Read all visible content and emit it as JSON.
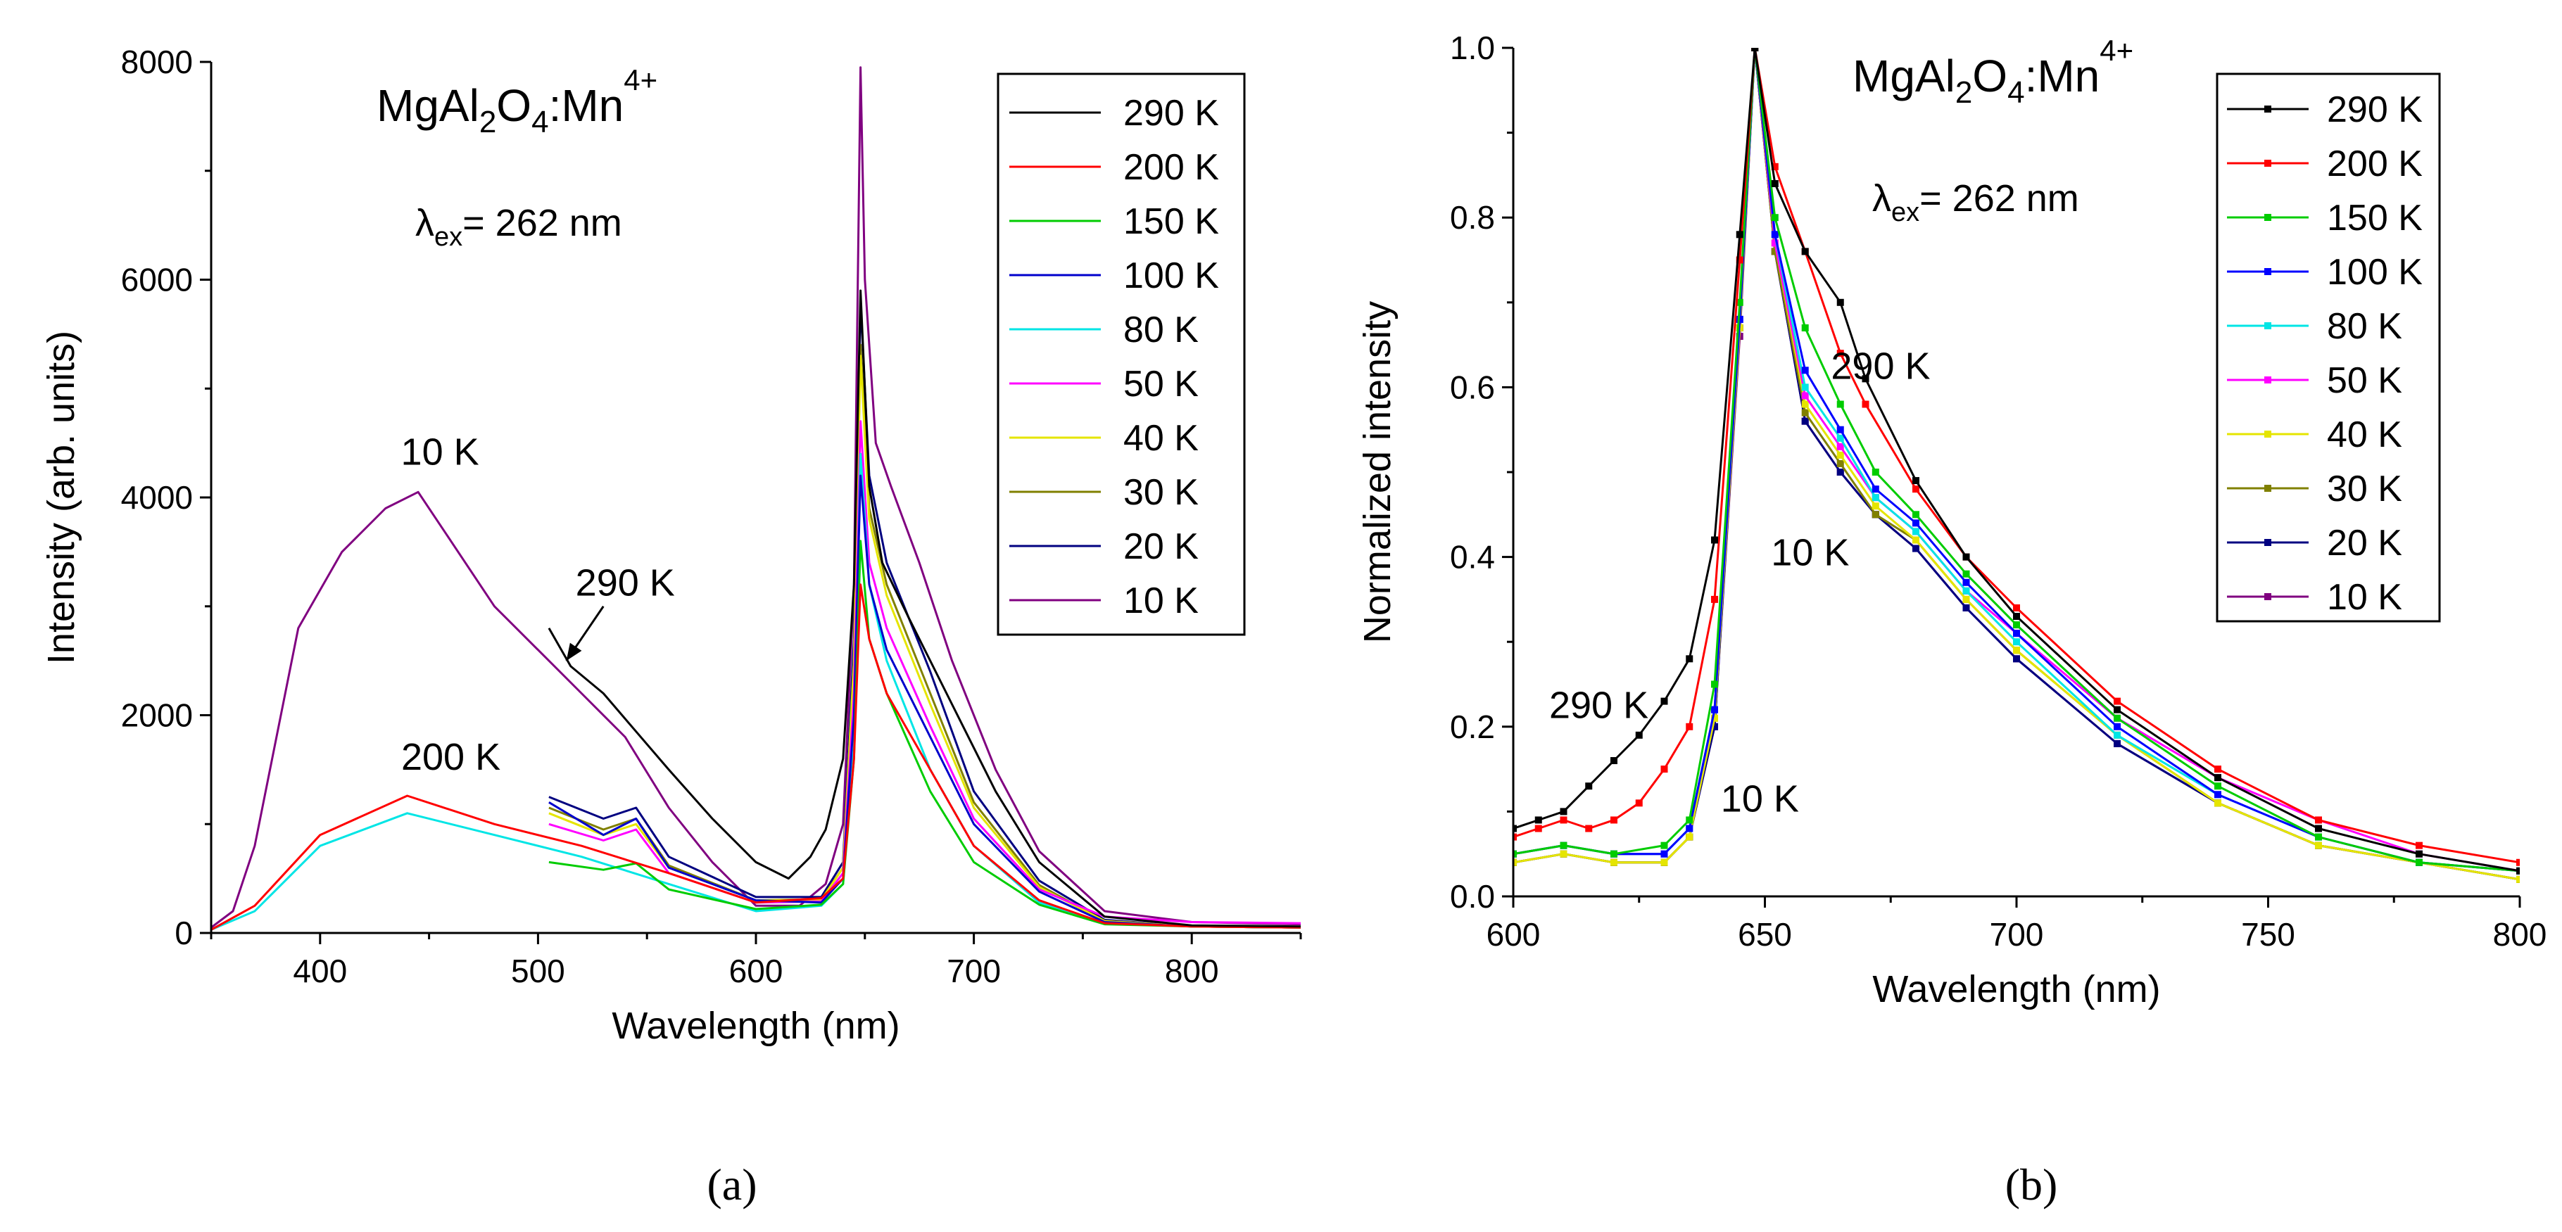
{
  "chart_data": [
    {
      "id": "a",
      "type": "line",
      "title_parts": [
        "MgAl",
        "2",
        "O",
        "4",
        ":Mn",
        "4+"
      ],
      "excitation_parts": [
        "λ",
        "ex",
        "= 262 nm"
      ],
      "xlabel": "Wavelength (nm)",
      "ylabel": "Intensity (arb. units)",
      "xlim": [
        350,
        850
      ],
      "ylim": [
        0,
        8000
      ],
      "xticks": [
        400,
        500,
        600,
        700,
        800
      ],
      "yticks": [
        0,
        2000,
        4000,
        6000,
        8000
      ],
      "markers": false,
      "legend_position": "top-right",
      "series": [
        {
          "name": "290 K",
          "color": "#000000",
          "x": [
            505,
            515,
            530,
            545,
            560,
            580,
            600,
            615,
            625,
            632,
            640,
            645,
            648,
            652,
            658,
            670,
            690,
            710,
            730,
            760,
            800,
            850
          ],
          "y": [
            2800,
            2450,
            2200,
            1850,
            1500,
            1050,
            650,
            500,
            700,
            950,
            1600,
            3200,
            5900,
            4100,
            3400,
            2900,
            2100,
            1300,
            650,
            150,
            70,
            60
          ]
        },
        {
          "name": "200 K",
          "color": "#ff0000",
          "x": [
            350,
            370,
            400,
            440,
            480,
            520,
            560,
            600,
            630,
            640,
            645,
            648,
            652,
            660,
            680,
            700,
            730,
            760,
            800,
            850
          ],
          "y": [
            30,
            250,
            900,
            1260,
            1000,
            800,
            550,
            280,
            320,
            500,
            1600,
            3200,
            2700,
            2200,
            1500,
            800,
            300,
            90,
            60,
            50
          ]
        },
        {
          "name": "150 K",
          "color": "#00cc00",
          "x": [
            505,
            530,
            545,
            560,
            600,
            630,
            640,
            645,
            648,
            652,
            660,
            680,
            700,
            730,
            760,
            800,
            850
          ],
          "y": [
            650,
            580,
            640,
            400,
            220,
            260,
            450,
            1600,
            3600,
            2700,
            2200,
            1300,
            650,
            260,
            80,
            60,
            50
          ]
        },
        {
          "name": "100 K",
          "color": "#0000cc",
          "x": [
            505,
            530,
            545,
            560,
            600,
            630,
            640,
            645,
            648,
            652,
            660,
            680,
            700,
            730,
            760,
            800,
            850
          ],
          "y": [
            1200,
            900,
            1050,
            600,
            300,
            280,
            500,
            2000,
            4200,
            3200,
            2600,
            1800,
            1000,
            380,
            100,
            60,
            50
          ]
        },
        {
          "name": "80 K",
          "color": "#00e5e5",
          "x": [
            350,
            370,
            400,
            440,
            480,
            520,
            560,
            600,
            630,
            640,
            645,
            648,
            652,
            660,
            680,
            700,
            730,
            760,
            800,
            850
          ],
          "y": [
            30,
            200,
            800,
            1100,
            900,
            700,
            450,
            200,
            250,
            450,
            1700,
            4400,
            3200,
            2500,
            1500,
            800,
            280,
            90,
            60,
            50
          ]
        },
        {
          "name": "50 K",
          "color": "#ff00ff",
          "x": [
            505,
            530,
            545,
            560,
            600,
            630,
            640,
            645,
            648,
            652,
            660,
            680,
            700,
            730,
            760,
            800,
            850
          ],
          "y": [
            1000,
            850,
            950,
            550,
            280,
            290,
            550,
            2200,
            4700,
            3400,
            2800,
            1900,
            1050,
            400,
            150,
            100,
            90
          ]
        },
        {
          "name": "40 K",
          "color": "#e5e500",
          "x": [
            505,
            530,
            545,
            560,
            600,
            630,
            640,
            645,
            648,
            652,
            660,
            680,
            700,
            730,
            760,
            800,
            850
          ],
          "y": [
            1100,
            900,
            1000,
            600,
            300,
            300,
            600,
            2500,
            5300,
            3800,
            3100,
            2100,
            1150,
            420,
            110,
            60,
            50
          ]
        },
        {
          "name": "30 K",
          "color": "#808000",
          "x": [
            505,
            530,
            545,
            560,
            600,
            630,
            640,
            645,
            648,
            652,
            660,
            680,
            700,
            730,
            760,
            800,
            850
          ],
          "y": [
            1150,
            950,
            1050,
            620,
            300,
            310,
            600,
            2500,
            5400,
            3900,
            3200,
            2200,
            1200,
            440,
            110,
            60,
            50
          ]
        },
        {
          "name": "20 K",
          "color": "#000080",
          "x": [
            505,
            530,
            545,
            560,
            600,
            630,
            640,
            645,
            648,
            652,
            660,
            680,
            700,
            730,
            760,
            800,
            850
          ],
          "y": [
            1250,
            1050,
            1150,
            700,
            330,
            330,
            650,
            2700,
            5800,
            4200,
            3400,
            2400,
            1300,
            480,
            120,
            60,
            50
          ]
        },
        {
          "name": "10 K",
          "color": "#800080",
          "x": [
            350,
            360,
            370,
            390,
            410,
            430,
            445,
            460,
            480,
            500,
            520,
            540,
            560,
            580,
            600,
            620,
            632,
            640,
            645,
            648,
            650,
            655,
            662,
            675,
            690,
            710,
            730,
            760,
            800,
            850
          ],
          "y": [
            50,
            200,
            800,
            2800,
            3500,
            3900,
            4050,
            3600,
            3000,
            2600,
            2200,
            1800,
            1150,
            650,
            250,
            250,
            450,
            1000,
            3200,
            7950,
            6000,
            4500,
            4100,
            3400,
            2500,
            1500,
            750,
            200,
            100,
            80
          ]
        }
      ],
      "annotations": [
        {
          "text": "10 K",
          "x": 455,
          "y": 4300
        },
        {
          "text": "200 K",
          "x": 460,
          "y": 1500
        },
        {
          "text": "290 K",
          "x": 540,
          "y": 3100
        }
      ],
      "arrow": {
        "from": [
          530,
          3000
        ],
        "to": [
          513,
          2500
        ]
      }
    },
    {
      "id": "b",
      "type": "line",
      "title_parts": [
        "MgAl",
        "2",
        "O",
        "4",
        ":Mn",
        "4+"
      ],
      "excitation_parts": [
        "λ",
        "ex",
        "= 262 nm"
      ],
      "xlabel": "Wavelength (nm)",
      "ylabel": "Normalized intensity",
      "xlim": [
        600,
        800
      ],
      "ylim": [
        0,
        1.0
      ],
      "xticks": [
        600,
        650,
        700,
        750,
        800
      ],
      "yticks": [
        0.0,
        0.2,
        0.4,
        0.6,
        0.8,
        1.0
      ],
      "markers": true,
      "legend_position": "top-right",
      "series": [
        {
          "name": "290 K",
          "color": "#000000",
          "x": [
            600,
            605,
            610,
            615,
            620,
            625,
            630,
            635,
            640,
            645,
            648,
            652,
            658,
            665,
            670,
            680,
            690,
            700,
            720,
            740,
            760,
            780,
            800
          ],
          "y": [
            0.08,
            0.09,
            0.1,
            0.13,
            0.16,
            0.19,
            0.23,
            0.28,
            0.42,
            0.78,
            1.0,
            0.84,
            0.76,
            0.7,
            0.61,
            0.49,
            0.4,
            0.33,
            0.22,
            0.14,
            0.08,
            0.05,
            0.03
          ]
        },
        {
          "name": "200 K",
          "color": "#ff0000",
          "x": [
            600,
            605,
            610,
            615,
            620,
            625,
            630,
            635,
            640,
            645,
            648,
            652,
            658,
            665,
            670,
            680,
            690,
            700,
            720,
            740,
            760,
            780,
            800
          ],
          "y": [
            0.07,
            0.08,
            0.09,
            0.08,
            0.09,
            0.11,
            0.15,
            0.2,
            0.35,
            0.75,
            1.0,
            0.86,
            0.76,
            0.64,
            0.58,
            0.48,
            0.4,
            0.34,
            0.23,
            0.15,
            0.09,
            0.06,
            0.04
          ]
        },
        {
          "name": "150 K",
          "color": "#00cc00",
          "x": [
            600,
            610,
            620,
            630,
            635,
            640,
            645,
            648,
            652,
            658,
            665,
            672,
            680,
            690,
            700,
            720,
            740,
            760,
            780,
            800
          ],
          "y": [
            0.05,
            0.06,
            0.05,
            0.06,
            0.09,
            0.25,
            0.7,
            1.0,
            0.8,
            0.67,
            0.58,
            0.5,
            0.45,
            0.38,
            0.32,
            0.21,
            0.13,
            0.07,
            0.04,
            0.03
          ]
        },
        {
          "name": "100 K",
          "color": "#0000ff",
          "x": [
            600,
            610,
            620,
            630,
            635,
            640,
            645,
            648,
            652,
            658,
            665,
            672,
            680,
            690,
            700,
            720,
            740,
            760,
            780,
            800
          ],
          "y": [
            0.05,
            0.06,
            0.05,
            0.05,
            0.08,
            0.22,
            0.68,
            1.0,
            0.78,
            0.62,
            0.55,
            0.48,
            0.44,
            0.37,
            0.31,
            0.2,
            0.12,
            0.07,
            0.04,
            0.03
          ]
        },
        {
          "name": "80 K",
          "color": "#00e5e5",
          "x": [
            600,
            610,
            620,
            630,
            635,
            640,
            645,
            648,
            652,
            658,
            665,
            672,
            680,
            690,
            700,
            720,
            740,
            760,
            780,
            800
          ],
          "y": [
            0.05,
            0.06,
            0.05,
            0.05,
            0.08,
            0.22,
            0.68,
            1.0,
            0.78,
            0.6,
            0.54,
            0.47,
            0.43,
            0.36,
            0.3,
            0.19,
            0.12,
            0.07,
            0.04,
            0.03
          ]
        },
        {
          "name": "50 K",
          "color": "#ff00ff",
          "x": [
            600,
            610,
            620,
            630,
            635,
            640,
            645,
            648,
            652,
            658,
            665,
            672,
            680,
            690,
            700,
            720,
            740,
            760,
            780,
            800
          ],
          "y": [
            0.05,
            0.06,
            0.05,
            0.05,
            0.08,
            0.22,
            0.68,
            1.0,
            0.77,
            0.59,
            0.53,
            0.47,
            0.43,
            0.36,
            0.31,
            0.21,
            0.14,
            0.09,
            0.05,
            0.03
          ]
        },
        {
          "name": "40 K",
          "color": "#e5e500",
          "x": [
            600,
            610,
            620,
            630,
            635,
            640,
            645,
            648,
            652,
            658,
            665,
            672,
            680,
            690,
            700,
            720,
            740,
            760,
            780,
            800
          ],
          "y": [
            0.04,
            0.05,
            0.04,
            0.04,
            0.07,
            0.21,
            0.67,
            1.0,
            0.77,
            0.58,
            0.52,
            0.46,
            0.42,
            0.35,
            0.29,
            0.19,
            0.11,
            0.06,
            0.04,
            0.02
          ]
        },
        {
          "name": "30 K",
          "color": "#808000",
          "x": [
            600,
            610,
            620,
            630,
            635,
            640,
            645,
            648,
            652,
            658,
            665,
            672,
            680,
            690,
            700,
            720,
            740,
            760,
            780,
            800
          ],
          "y": [
            0.04,
            0.05,
            0.04,
            0.04,
            0.07,
            0.21,
            0.67,
            1.0,
            0.76,
            0.57,
            0.51,
            0.45,
            0.42,
            0.35,
            0.29,
            0.19,
            0.11,
            0.06,
            0.04,
            0.02
          ]
        },
        {
          "name": "20 K",
          "color": "#000080",
          "x": [
            600,
            610,
            620,
            630,
            635,
            640,
            645,
            648,
            652,
            658,
            665,
            672,
            680,
            690,
            700,
            720,
            740,
            760,
            780,
            800
          ],
          "y": [
            0.04,
            0.05,
            0.04,
            0.04,
            0.07,
            0.2,
            0.67,
            1.0,
            0.76,
            0.56,
            0.5,
            0.45,
            0.41,
            0.34,
            0.28,
            0.18,
            0.11,
            0.06,
            0.04,
            0.02
          ]
        },
        {
          "name": "10 K",
          "color": "#800080",
          "x": [
            600,
            610,
            620,
            630,
            635,
            640,
            645,
            648,
            652,
            658,
            665,
            672,
            680,
            690,
            700,
            720,
            740,
            760,
            780,
            800
          ],
          "y": [
            0.04,
            0.05,
            0.04,
            0.04,
            0.07,
            0.2,
            0.66,
            1.0,
            0.76,
            0.56,
            0.5,
            0.45,
            0.41,
            0.34,
            0.28,
            0.18,
            0.11,
            0.06,
            0.04,
            0.02
          ]
        }
      ],
      "annotations": [
        {
          "text": "290 K",
          "x": 673,
          "y": 0.61
        },
        {
          "text": "10 K",
          "x": 659,
          "y": 0.39
        },
        {
          "text": "290 K",
          "x": 617,
          "y": 0.21
        },
        {
          "text": "10 K",
          "x": 649,
          "y": 0.1
        }
      ]
    }
  ],
  "panel_labels": [
    "(a)",
    "(b)"
  ]
}
